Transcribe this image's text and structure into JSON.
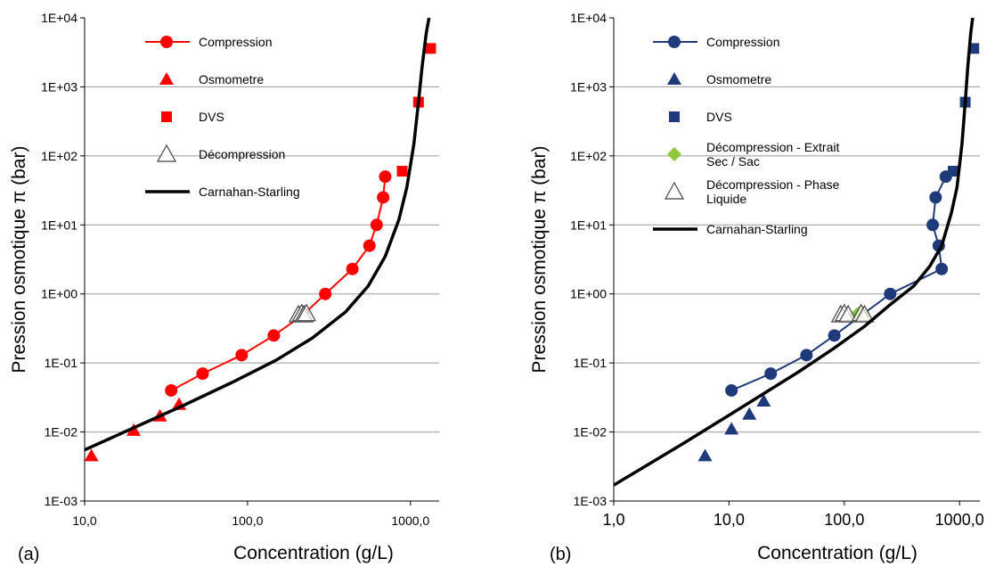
{
  "chart_data": [
    {
      "type": "scatter",
      "panel_label": "(a)",
      "xlabel": "Concentration (g/L)",
      "ylabel": "Pression osmotique π (bar)",
      "xscale": "log",
      "yscale": "log",
      "xlim": [
        10,
        1500
      ],
      "ylim": [
        0.001,
        10000
      ],
      "x_ticks": [
        10,
        100,
        1000
      ],
      "x_tick_labels": [
        "10,0",
        "100,0",
        "1000,0"
      ],
      "y_ticks": [
        0.001,
        0.01,
        0.1,
        1,
        10,
        100,
        1000,
        10000
      ],
      "y_tick_labels": [
        "1E-03",
        "1E-02",
        "1E-01",
        "1E+00",
        "1E+01",
        "1E+02",
        "1E+03",
        "1E+04"
      ],
      "grid": "horizontal",
      "legend_position": "top-left",
      "series": [
        {
          "name": "Compression",
          "marker": "circle-line",
          "color": "#ff0000",
          "x": [
            34,
            53,
            92,
            145,
            220,
            300,
            440,
            560,
            620,
            680,
            700
          ],
          "y": [
            0.04,
            0.07,
            0.13,
            0.25,
            0.5,
            1.0,
            2.3,
            5.0,
            10,
            25,
            50
          ]
        },
        {
          "name": "Osmometre",
          "marker": "triangle",
          "color": "#ff0000",
          "x": [
            11,
            20,
            29,
            38
          ],
          "y": [
            0.0045,
            0.0105,
            0.017,
            0.025
          ]
        },
        {
          "name": "DVS",
          "marker": "square",
          "color": "#ff0000",
          "x": [
            890,
            1120,
            1330
          ],
          "y": [
            60,
            600,
            3600
          ]
        },
        {
          "name": "Décompression",
          "marker": "open-triangle",
          "color": "#444444",
          "x": [
            205,
            215,
            222,
            230
          ],
          "y": [
            0.5,
            0.52,
            0.5,
            0.52
          ]
        },
        {
          "name": "Carnahan-Starling",
          "marker": "thick-line",
          "color": "#000000",
          "x": [
            10,
            20,
            40,
            80,
            150,
            250,
            400,
            550,
            700,
            850,
            950,
            1050,
            1120,
            1180,
            1250,
            1300
          ],
          "y": [
            0.0055,
            0.0115,
            0.024,
            0.052,
            0.11,
            0.23,
            0.55,
            1.3,
            3.5,
            12,
            35,
            150,
            600,
            2000,
            6000,
            10000
          ]
        }
      ]
    },
    {
      "type": "scatter",
      "panel_label": "(b)",
      "xlabel": "Concentration (g/L)",
      "ylabel": "Pression osmotique π (bar)",
      "xscale": "log",
      "yscale": "log",
      "xlim": [
        1,
        1500
      ],
      "ylim": [
        0.001,
        10000
      ],
      "x_ticks": [
        1,
        10,
        100,
        1000
      ],
      "x_tick_labels": [
        "1,0",
        "10,0",
        "100,0",
        "1000,0"
      ],
      "y_ticks": [
        0.001,
        0.01,
        0.1,
        1,
        10,
        100,
        1000,
        10000
      ],
      "y_tick_labels": [
        "1E-03",
        "1E-02",
        "1E-01",
        "1E+00",
        "1E+01",
        "1E+02",
        "1E+03",
        "1E+04"
      ],
      "grid": "horizontal",
      "legend_position": "top-left",
      "series": [
        {
          "name": "Compression",
          "marker": "circle-line",
          "color": "#1f3a7a",
          "x": [
            10.5,
            23,
            47,
            82,
            250,
            700,
            660,
            585,
            620,
            760
          ],
          "y": [
            0.04,
            0.07,
            0.13,
            0.25,
            1.0,
            2.3,
            5.0,
            10,
            25,
            50
          ]
        },
        {
          "name": "Osmometre",
          "marker": "triangle",
          "color": "#1f3a7a",
          "x": [
            6.2,
            10.5,
            15,
            20
          ],
          "y": [
            0.0045,
            0.011,
            0.018,
            0.028
          ]
        },
        {
          "name": "DVS",
          "marker": "square",
          "color": "#1f3a7a",
          "x": [
            880,
            1120,
            1330
          ],
          "y": [
            60,
            600,
            3600
          ]
        },
        {
          "name": "Décompression - Extrait Sec / Sac",
          "name_lines": [
            "Décompression - Extrait",
            "Sec / Sac"
          ],
          "marker": "diamond",
          "color": "#8dc63f",
          "x": [
            128,
            133,
            137,
            143
          ],
          "y": [
            0.5,
            0.52,
            0.5,
            0.52
          ]
        },
        {
          "name": "Décompression - Phase Liquide",
          "name_lines": [
            "Décompression - Phase",
            "Liquide"
          ],
          "marker": "open-triangle",
          "color": "#444444",
          "x": [
            93,
            100,
            108,
            140,
            150
          ],
          "y": [
            0.5,
            0.52,
            0.5,
            0.52,
            0.5
          ]
        },
        {
          "name": "Carnahan-Starling",
          "marker": "thick-line",
          "color": "#000000",
          "x": [
            1,
            2,
            4,
            10,
            20,
            40,
            80,
            150,
            250,
            400,
            550,
            700,
            850,
            950,
            1050,
            1120,
            1180,
            1250,
            1300
          ],
          "y": [
            0.0017,
            0.0034,
            0.0068,
            0.0175,
            0.036,
            0.074,
            0.16,
            0.34,
            0.7,
            1.3,
            2.5,
            5,
            15,
            35,
            150,
            600,
            2000,
            6000,
            10000
          ]
        }
      ]
    }
  ]
}
